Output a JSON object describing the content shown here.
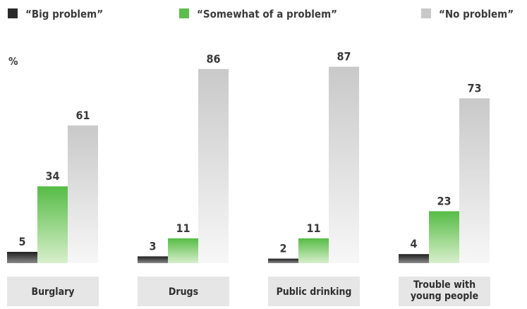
{
  "chart_data": {
    "type": "bar",
    "unit_label": "%",
    "categories": [
      "Burglary",
      "Drugs",
      "Public drinking",
      "Trouble with young people"
    ],
    "category_display": [
      [
        "Burglary"
      ],
      [
        "Drugs"
      ],
      [
        "Public drinking"
      ],
      [
        "Trouble with",
        "young people"
      ]
    ],
    "series": [
      {
        "name": "“Big problem”",
        "values": [
          5,
          3,
          2,
          4
        ],
        "color": "#2a2a2a"
      },
      {
        "name": "“Somewhat of a problem”",
        "values": [
          34,
          11,
          11,
          23
        ],
        "color": "#5cbf4b"
      },
      {
        "name": "“No problem”",
        "values": [
          61,
          86,
          87,
          73
        ],
        "color": "#c8c8c8"
      }
    ],
    "ylim": [
      0,
      100
    ],
    "grid": false,
    "legend_position": "top"
  },
  "colors": {
    "category_box": "#e6e6e6",
    "text": "#3a3a3a"
  }
}
